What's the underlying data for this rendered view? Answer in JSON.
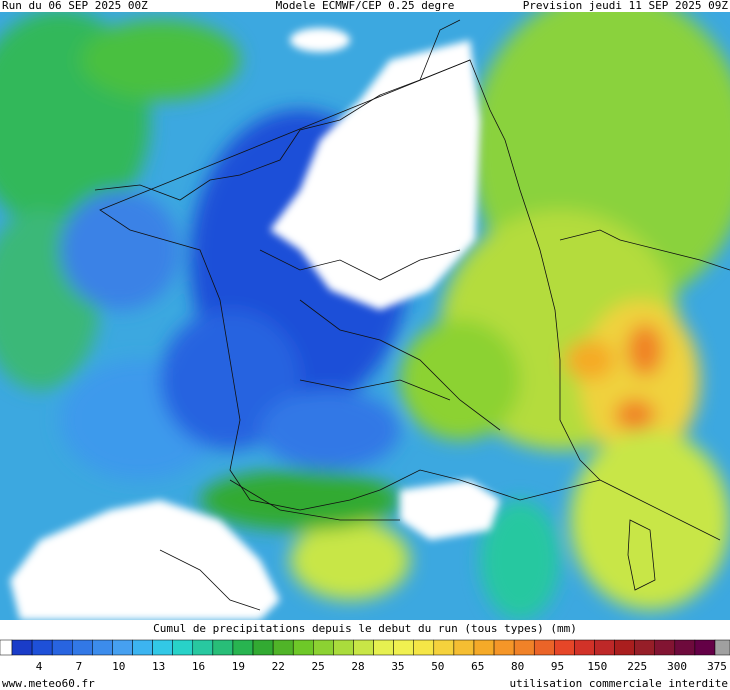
{
  "header": {
    "run": "Run du 06 SEP 2025 00Z",
    "model": "Modele ECMWF/CEP 0.25 degre",
    "forecast": "Prevision jeudi 11 SEP 2025 09Z"
  },
  "legend": {
    "title": "Cumul de precipitations depuis le debut du run (tous types) (mm)",
    "ticks": [
      4,
      7,
      10,
      13,
      16,
      19,
      22,
      25,
      28,
      35,
      50,
      65,
      80,
      95,
      150,
      225,
      300,
      375
    ],
    "colors": [
      "#ffffff",
      "#1a3cc8",
      "#1e50d8",
      "#2864e0",
      "#3278e6",
      "#3c8cec",
      "#46a0f0",
      "#3cb4f0",
      "#32c8e6",
      "#28d2c8",
      "#28c8a0",
      "#28be78",
      "#28b450",
      "#32aa32",
      "#50b428",
      "#6ec828",
      "#8cd232",
      "#aadc3c",
      "#c8e646",
      "#e6f050",
      "#f0f050",
      "#f5e646",
      "#f5d23c",
      "#f5be32",
      "#f5aa28",
      "#f59628",
      "#f08228",
      "#eb6428",
      "#e64628",
      "#d23228",
      "#be2828",
      "#aa1e1e",
      "#961e28",
      "#821432",
      "#6e0a3c",
      "#640046",
      "#a0a0a0"
    ]
  },
  "footer": {
    "site": "www.meteo60.fr",
    "notice": "utilisation commerciale interdite"
  }
}
